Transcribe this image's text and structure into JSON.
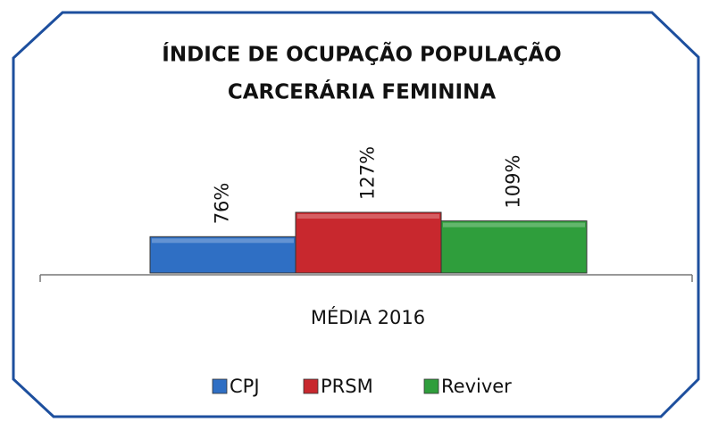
{
  "chart_data": {
    "type": "bar",
    "title": "ÍNDICE DE OCUPAÇÃO POPULAÇÃO",
    "subtitle": "CARCERÁRIA  FEMININA",
    "categories": [
      "MÉDIA 2016"
    ],
    "series": [
      {
        "name": "CPJ",
        "color": "#2f6fc4",
        "values": [
          76
        ],
        "value_labels": [
          "76%"
        ]
      },
      {
        "name": "PRSM",
        "color": "#c8282e",
        "values": [
          127
        ],
        "value_labels": [
          "127%"
        ]
      },
      {
        "name": "Reviver",
        "color": "#2f9e3c",
        "values": [
          109
        ],
        "value_labels": [
          "109%"
        ]
      }
    ],
    "legend": "bottom"
  }
}
